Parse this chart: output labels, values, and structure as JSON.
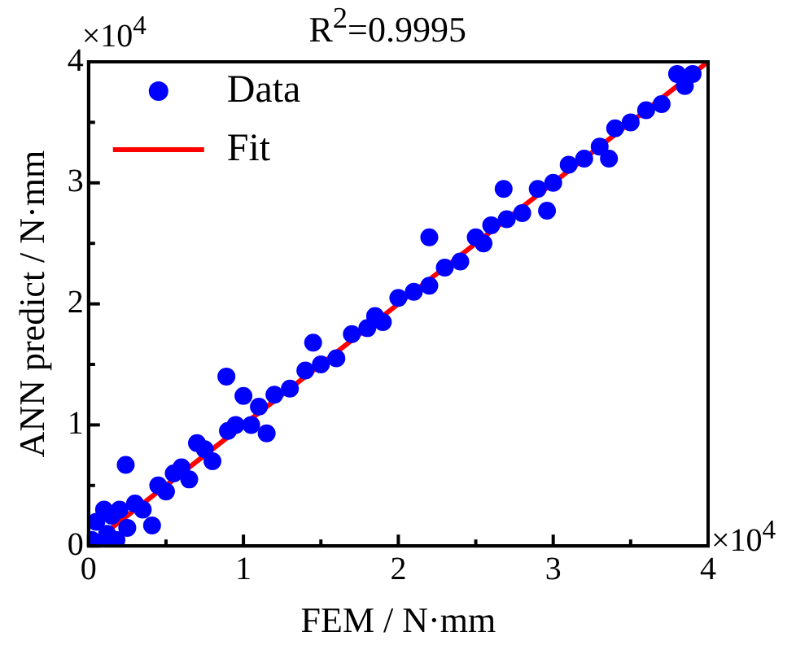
{
  "chart_data": {
    "type": "scatter",
    "title": "R$^{2}$=0.9995",
    "xlabel": "FEM / N·mm",
    "ylabel": "ANN predict / N·mm",
    "annotations": [
      "×10$^{4}$",
      "×10$^{4}$"
    ],
    "xlim": [
      0,
      4
    ],
    "ylim": [
      0,
      4
    ],
    "xticks": [
      0,
      {
        "value": 0.5,
        "label": null
      },
      1,
      {
        "value": 1.5,
        "label": null
      },
      2,
      {
        "value": 2.5,
        "label": null
      },
      3,
      {
        "value": 3.5,
        "label": null
      },
      4
    ],
    "yticks": [
      0,
      {
        "value": 0.5,
        "label": null
      },
      1,
      {
        "value": 1.5,
        "label": null
      },
      2,
      {
        "value": 2.5,
        "label": null
      },
      3,
      {
        "value": 3.5,
        "label": null
      },
      4
    ],
    "legend": "top left",
    "marker": "circle",
    "grid": false,
    "series": [
      {
        "name": "Data",
        "color": "#0000ff",
        "x": [
          0.02,
          0.05,
          0.08,
          0.1,
          0.12,
          0.15,
          0.18,
          0.2,
          0.24,
          0.25,
          0.3,
          0.35,
          0.41,
          0.45,
          0.5,
          0.55,
          0.6,
          0.65,
          0.7,
          0.75,
          0.8,
          0.89,
          0.9,
          0.95,
          1.0,
          1.05,
          1.1,
          1.15,
          1.2,
          1.3,
          1.4,
          1.45,
          1.5,
          1.6,
          1.7,
          1.8,
          1.85,
          1.9,
          2.0,
          2.1,
          2.2,
          2.2,
          2.3,
          2.4,
          2.5,
          2.55,
          2.6,
          2.68,
          2.7,
          2.8,
          2.9,
          2.96,
          3.0,
          3.1,
          3.2,
          3.3,
          3.36,
          3.4,
          3.5,
          3.6,
          3.7,
          3.8,
          3.85,
          3.9
        ],
        "values": [
          0.05,
          0.2,
          0.0,
          0.3,
          0.1,
          0.25,
          0.05,
          0.3,
          0.67,
          0.15,
          0.35,
          0.3,
          0.17,
          0.5,
          0.45,
          0.6,
          0.65,
          0.55,
          0.85,
          0.8,
          0.7,
          1.4,
          0.95,
          1.0,
          1.24,
          1.0,
          1.15,
          0.93,
          1.25,
          1.3,
          1.45,
          1.68,
          1.5,
          1.55,
          1.75,
          1.8,
          1.9,
          1.85,
          2.05,
          2.1,
          2.55,
          2.15,
          2.3,
          2.35,
          2.55,
          2.5,
          2.65,
          2.95,
          2.7,
          2.75,
          2.95,
          2.77,
          3.0,
          3.15,
          3.2,
          3.3,
          3.2,
          3.45,
          3.5,
          3.6,
          3.65,
          3.9,
          3.8,
          3.9
        ]
      },
      {
        "name": "Fit",
        "type": "line",
        "color": "#ff0000",
        "marker": "none",
        "line_style": "solid",
        "x": [
          0,
          4
        ],
        "values": [
          0,
          4
        ]
      }
    ]
  }
}
